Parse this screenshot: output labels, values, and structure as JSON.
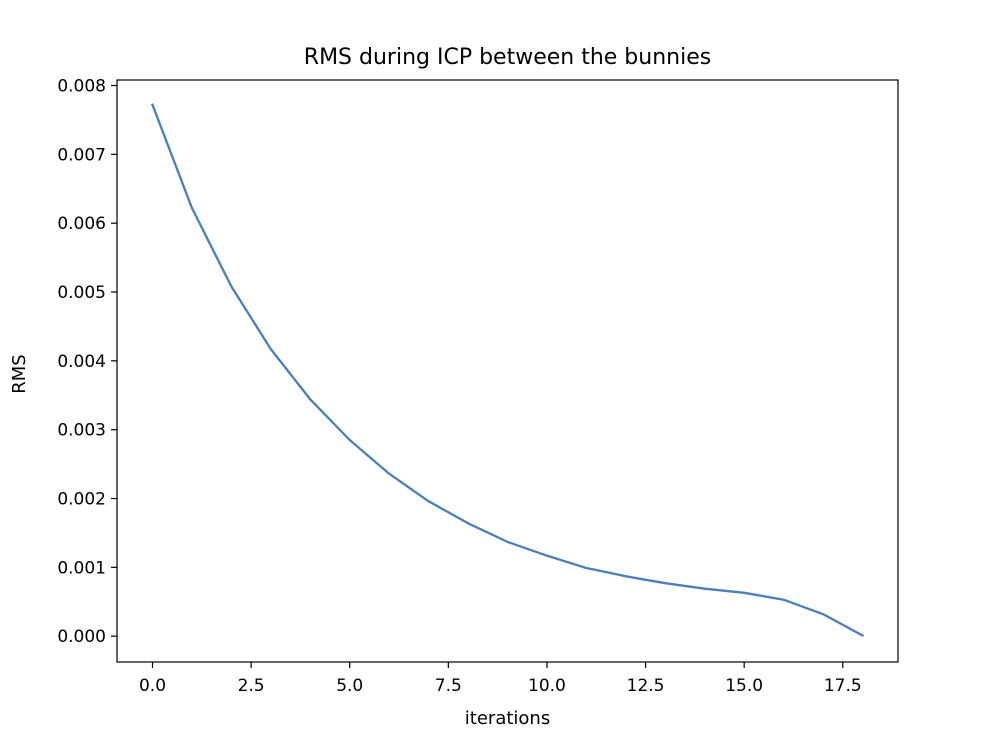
{
  "chart_data": {
    "type": "line",
    "title": "RMS during ICP between the bunnies",
    "xlabel": "iterations",
    "ylabel": "RMS",
    "xlim": [
      -0.9,
      18.9
    ],
    "ylim": [
      -0.000375,
      0.00808
    ],
    "xticks": [
      0.0,
      2.5,
      5.0,
      7.5,
      10.0,
      12.5,
      15.0,
      17.5
    ],
    "xtick_labels": [
      "0.0",
      "2.5",
      "5.0",
      "7.5",
      "10.0",
      "12.5",
      "15.0",
      "17.5"
    ],
    "yticks": [
      0.0,
      0.001,
      0.002,
      0.003,
      0.004,
      0.005,
      0.006,
      0.007,
      0.008
    ],
    "ytick_labels": [
      "0.000",
      "0.001",
      "0.002",
      "0.003",
      "0.004",
      "0.005",
      "0.006",
      "0.007",
      "0.008"
    ],
    "grid": false,
    "series": [
      {
        "color": "#4a7fb8",
        "x": [
          0,
          1,
          2,
          3,
          4,
          5,
          6,
          7,
          8,
          9,
          10,
          11,
          12,
          13,
          14,
          15,
          16,
          17,
          18
        ],
        "y": [
          0.00772,
          0.00622,
          0.00508,
          0.00417,
          0.00344,
          0.00285,
          0.00236,
          0.00196,
          0.00164,
          0.00137,
          0.00117,
          0.00099,
          0.00087,
          0.00077,
          0.00069,
          0.00063,
          0.00053,
          0.00032,
          1e-05
        ]
      }
    ]
  }
}
